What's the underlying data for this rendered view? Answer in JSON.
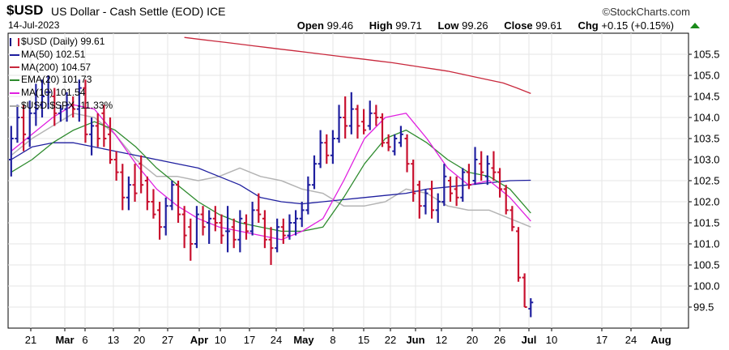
{
  "header": {
    "symbol": "$USD",
    "description": "US Dollar - Cash Settle (EOD)",
    "exchange": "ICE",
    "date": "14-Jul-2023",
    "brand": "©StockCharts.com",
    "open_label": "Open",
    "open": "99.46",
    "high_label": "High",
    "high": "99.71",
    "low_label": "Low",
    "low": "99.26",
    "close_label": "Close",
    "close": "99.61",
    "chg_label": "Chg",
    "chg": "+0.15 (+0.15%)"
  },
  "legend": [
    {
      "text": "$USD (Daily) 99.61",
      "color": "#000080"
    },
    {
      "text": "MA(50) 102.51",
      "color": "#1f1f9f"
    },
    {
      "text": "MA(200) 104.57",
      "color": "#c8283c"
    },
    {
      "text": "EMA(20) 101.73",
      "color": "#2e8b2e"
    },
    {
      "text": "MA(10) 101.54",
      "color": "#e020e0"
    },
    {
      "text": "$USD:$SPX -11.33%",
      "color": "#aaaaaa"
    }
  ],
  "colors": {
    "up": "#1f1f9f",
    "down": "#c8102e",
    "ma50": "#1f1f9f",
    "ma200": "#c8283c",
    "ema20": "#2e8b2e",
    "ma10": "#e020e0",
    "ratio": "#b4b4b4"
  },
  "chart_data": {
    "type": "line",
    "ylim": [
      99.0,
      106.0
    ],
    "y_ticks": [
      99.5,
      100.0,
      100.5,
      101.0,
      101.5,
      102.0,
      102.5,
      103.0,
      103.5,
      104.0,
      104.5,
      105.0,
      105.5
    ],
    "x_tick_labels": [
      "21",
      "Mar",
      "6",
      "13",
      "20",
      "27",
      "Apr",
      "10",
      "17",
      "24",
      "May",
      "8",
      "15",
      "22",
      "Jun",
      "12",
      "20",
      "26",
      "Jul",
      "10",
      "17",
      "24",
      "Aug"
    ],
    "x_tick_major": [
      false,
      true,
      false,
      false,
      false,
      false,
      true,
      false,
      false,
      false,
      true,
      false,
      false,
      false,
      true,
      false,
      false,
      false,
      true,
      false,
      false,
      false,
      true
    ],
    "bars": [
      {
        "o": 103.0,
        "h": 103.8,
        "l": 102.6,
        "c": 103.5
      },
      {
        "o": 103.5,
        "h": 104.3,
        "l": 103.4,
        "c": 104.0
      },
      {
        "o": 104.0,
        "h": 104.3,
        "l": 103.2,
        "c": 103.6
      },
      {
        "o": 103.5,
        "h": 104.4,
        "l": 103.3,
        "c": 104.1
      },
      {
        "o": 104.1,
        "h": 104.8,
        "l": 103.8,
        "c": 104.2
      },
      {
        "o": 104.3,
        "h": 104.9,
        "l": 104.0,
        "c": 104.5
      },
      {
        "o": 104.6,
        "h": 105.0,
        "l": 104.2,
        "c": 104.6
      },
      {
        "o": 104.5,
        "h": 104.7,
        "l": 103.8,
        "c": 104.1
      },
      {
        "o": 104.1,
        "h": 104.3,
        "l": 103.9,
        "c": 104.2
      },
      {
        "o": 104.2,
        "h": 104.6,
        "l": 103.9,
        "c": 104.3
      },
      {
        "o": 104.3,
        "h": 104.5,
        "l": 104.0,
        "c": 104.2
      },
      {
        "o": 104.2,
        "h": 104.9,
        "l": 103.9,
        "c": 104.7
      },
      {
        "o": 104.7,
        "h": 104.9,
        "l": 103.4,
        "c": 103.6
      },
      {
        "o": 103.6,
        "h": 104.0,
        "l": 103.1,
        "c": 103.8
      },
      {
        "o": 103.8,
        "h": 104.1,
        "l": 103.3,
        "c": 103.5
      },
      {
        "o": 104.1,
        "h": 104.3,
        "l": 103.3,
        "c": 103.5
      },
      {
        "o": 103.6,
        "h": 104.0,
        "l": 102.9,
        "c": 103.0
      },
      {
        "o": 103.0,
        "h": 103.2,
        "l": 102.5,
        "c": 102.7
      },
      {
        "o": 102.7,
        "h": 102.9,
        "l": 101.8,
        "c": 102.1
      },
      {
        "o": 102.1,
        "h": 102.6,
        "l": 101.8,
        "c": 102.4
      },
      {
        "o": 102.4,
        "h": 102.9,
        "l": 102.0,
        "c": 102.2
      },
      {
        "o": 102.9,
        "h": 103.1,
        "l": 102.2,
        "c": 102.4
      },
      {
        "o": 102.5,
        "h": 102.6,
        "l": 101.8,
        "c": 102.0
      },
      {
        "o": 102.0,
        "h": 102.3,
        "l": 101.6,
        "c": 101.7
      },
      {
        "o": 101.8,
        "h": 102.0,
        "l": 101.1,
        "c": 101.4
      },
      {
        "o": 101.4,
        "h": 102.1,
        "l": 101.2,
        "c": 101.9
      },
      {
        "o": 101.9,
        "h": 102.5,
        "l": 101.8,
        "c": 102.4
      },
      {
        "o": 102.4,
        "h": 102.5,
        "l": 101.5,
        "c": 101.7
      },
      {
        "o": 101.7,
        "h": 101.9,
        "l": 100.9,
        "c": 101.2
      },
      {
        "o": 101.4,
        "h": 101.6,
        "l": 100.6,
        "c": 101.0
      },
      {
        "o": 101.0,
        "h": 101.9,
        "l": 100.9,
        "c": 101.7
      },
      {
        "o": 101.7,
        "h": 101.9,
        "l": 101.2,
        "c": 101.4
      },
      {
        "o": 101.5,
        "h": 101.8,
        "l": 101.0,
        "c": 101.6
      },
      {
        "o": 101.6,
        "h": 101.9,
        "l": 101.3,
        "c": 101.5
      },
      {
        "o": 101.5,
        "h": 101.7,
        "l": 101.0,
        "c": 101.2
      },
      {
        "o": 101.3,
        "h": 101.9,
        "l": 100.8,
        "c": 101.3
      },
      {
        "o": 101.4,
        "h": 101.6,
        "l": 100.9,
        "c": 101.1
      },
      {
        "o": 101.1,
        "h": 101.8,
        "l": 100.8,
        "c": 101.6
      },
      {
        "o": 101.5,
        "h": 101.7,
        "l": 101.1,
        "c": 101.3
      },
      {
        "o": 101.3,
        "h": 102.0,
        "l": 101.2,
        "c": 101.8
      },
      {
        "o": 101.8,
        "h": 102.2,
        "l": 101.5,
        "c": 101.7
      },
      {
        "o": 101.6,
        "h": 101.8,
        "l": 100.9,
        "c": 101.1
      },
      {
        "o": 101.1,
        "h": 101.4,
        "l": 100.5,
        "c": 100.9
      },
      {
        "o": 100.9,
        "h": 101.6,
        "l": 100.8,
        "c": 101.4
      },
      {
        "o": 101.4,
        "h": 101.6,
        "l": 101.0,
        "c": 101.2
      },
      {
        "o": 101.2,
        "h": 101.7,
        "l": 101.1,
        "c": 101.5
      },
      {
        "o": 101.5,
        "h": 101.8,
        "l": 101.2,
        "c": 101.6
      },
      {
        "o": 101.6,
        "h": 102.0,
        "l": 101.4,
        "c": 101.8
      },
      {
        "o": 101.8,
        "h": 102.6,
        "l": 101.7,
        "c": 102.4
      },
      {
        "o": 102.4,
        "h": 103.1,
        "l": 102.3,
        "c": 102.9
      },
      {
        "o": 102.9,
        "h": 103.7,
        "l": 102.8,
        "c": 103.4
      },
      {
        "o": 103.4,
        "h": 103.6,
        "l": 102.9,
        "c": 103.1
      },
      {
        "o": 103.1,
        "h": 103.7,
        "l": 102.9,
        "c": 103.5
      },
      {
        "o": 103.5,
        "h": 104.3,
        "l": 103.4,
        "c": 104.0
      },
      {
        "o": 104.0,
        "h": 104.5,
        "l": 103.5,
        "c": 103.8
      },
      {
        "o": 103.8,
        "h": 104.6,
        "l": 103.6,
        "c": 104.2
      },
      {
        "o": 104.2,
        "h": 104.3,
        "l": 103.5,
        "c": 103.8
      },
      {
        "o": 103.9,
        "h": 104.2,
        "l": 103.6,
        "c": 103.7
      },
      {
        "o": 103.8,
        "h": 104.4,
        "l": 103.7,
        "c": 104.1
      },
      {
        "o": 104.1,
        "h": 104.3,
        "l": 103.8,
        "c": 104.0
      },
      {
        "o": 104.0,
        "h": 104.1,
        "l": 103.3,
        "c": 103.4
      },
      {
        "o": 103.4,
        "h": 103.6,
        "l": 103.2,
        "c": 103.3
      },
      {
        "o": 103.2,
        "h": 103.6,
        "l": 103.1,
        "c": 103.5
      },
      {
        "o": 103.4,
        "h": 103.8,
        "l": 103.3,
        "c": 103.6
      },
      {
        "o": 103.5,
        "h": 103.6,
        "l": 102.7,
        "c": 102.9
      },
      {
        "o": 102.9,
        "h": 103.0,
        "l": 102.0,
        "c": 102.2
      },
      {
        "o": 102.4,
        "h": 102.5,
        "l": 101.6,
        "c": 101.9
      },
      {
        "o": 101.9,
        "h": 102.3,
        "l": 101.7,
        "c": 102.2
      },
      {
        "o": 102.3,
        "h": 102.5,
        "l": 101.6,
        "c": 101.8
      },
      {
        "o": 101.8,
        "h": 102.2,
        "l": 101.5,
        "c": 102.0
      },
      {
        "o": 102.0,
        "h": 102.9,
        "l": 101.9,
        "c": 102.6
      },
      {
        "o": 102.5,
        "h": 102.6,
        "l": 102.0,
        "c": 102.2
      },
      {
        "o": 102.3,
        "h": 102.6,
        "l": 101.9,
        "c": 102.1
      },
      {
        "o": 102.1,
        "h": 102.8,
        "l": 102.0,
        "c": 102.7
      },
      {
        "o": 102.7,
        "h": 102.9,
        "l": 102.3,
        "c": 102.4
      },
      {
        "o": 102.5,
        "h": 103.3,
        "l": 102.4,
        "c": 103.0
      },
      {
        "o": 102.9,
        "h": 103.2,
        "l": 102.5,
        "c": 102.7
      },
      {
        "o": 102.6,
        "h": 103.1,
        "l": 102.4,
        "c": 102.9
      },
      {
        "o": 102.8,
        "h": 103.2,
        "l": 102.5,
        "c": 102.7
      },
      {
        "o": 102.7,
        "h": 102.8,
        "l": 102.1,
        "c": 102.3
      },
      {
        "o": 102.3,
        "h": 102.4,
        "l": 101.7,
        "c": 101.8
      },
      {
        "o": 101.8,
        "h": 101.9,
        "l": 101.3,
        "c": 101.4
      },
      {
        "o": 101.3,
        "h": 101.4,
        "l": 100.1,
        "c": 100.2
      },
      {
        "o": 100.2,
        "h": 100.3,
        "l": 99.5,
        "c": 99.5
      },
      {
        "o": 99.46,
        "h": 99.71,
        "l": 99.26,
        "c": 99.61
      }
    ],
    "ma200": [
      105.9,
      105.86,
      105.82,
      105.78,
      105.74,
      105.7,
      105.66,
      105.62,
      105.58,
      105.54,
      105.5,
      105.46,
      105.42,
      105.38,
      105.34,
      105.3,
      105.25,
      105.2,
      105.15,
      105.1,
      105.03,
      104.96,
      104.89,
      104.82,
      104.7,
      104.57
    ],
    "ma50": [
      103.0,
      103.3,
      103.4,
      103.4,
      103.3,
      103.2,
      103.1,
      103.0,
      102.9,
      102.8,
      102.6,
      102.4,
      102.1,
      102.0,
      101.95,
      102.0,
      102.05,
      102.1,
      102.15,
      102.2,
      102.3,
      102.35,
      102.4,
      102.45,
      102.5,
      102.51
    ],
    "ema20": [
      102.7,
      103.0,
      103.4,
      103.7,
      103.9,
      103.7,
      103.3,
      102.8,
      102.4,
      102.0,
      101.7,
      101.5,
      101.4,
      101.3,
      101.3,
      101.4,
      102.1,
      102.9,
      103.5,
      103.7,
      103.4,
      103.0,
      102.7,
      102.6,
      102.3,
      101.73
    ],
    "ma10": [
      103.2,
      103.6,
      104.0,
      104.3,
      104.2,
      103.6,
      102.9,
      102.3,
      101.9,
      101.6,
      101.4,
      101.3,
      101.2,
      101.1,
      101.3,
      101.6,
      102.5,
      103.5,
      104.0,
      104.1,
      103.5,
      102.8,
      102.4,
      102.5,
      102.1,
      101.54
    ],
    "ratio": [
      103.1,
      103.5,
      103.8,
      104.1,
      104.0,
      103.6,
      103.0,
      102.6,
      102.6,
      102.5,
      102.6,
      102.8,
      102.6,
      102.5,
      102.3,
      102.2,
      101.9,
      101.9,
      102.0,
      102.3,
      102.2,
      101.9,
      101.8,
      101.8,
      101.6,
      101.4
    ]
  }
}
